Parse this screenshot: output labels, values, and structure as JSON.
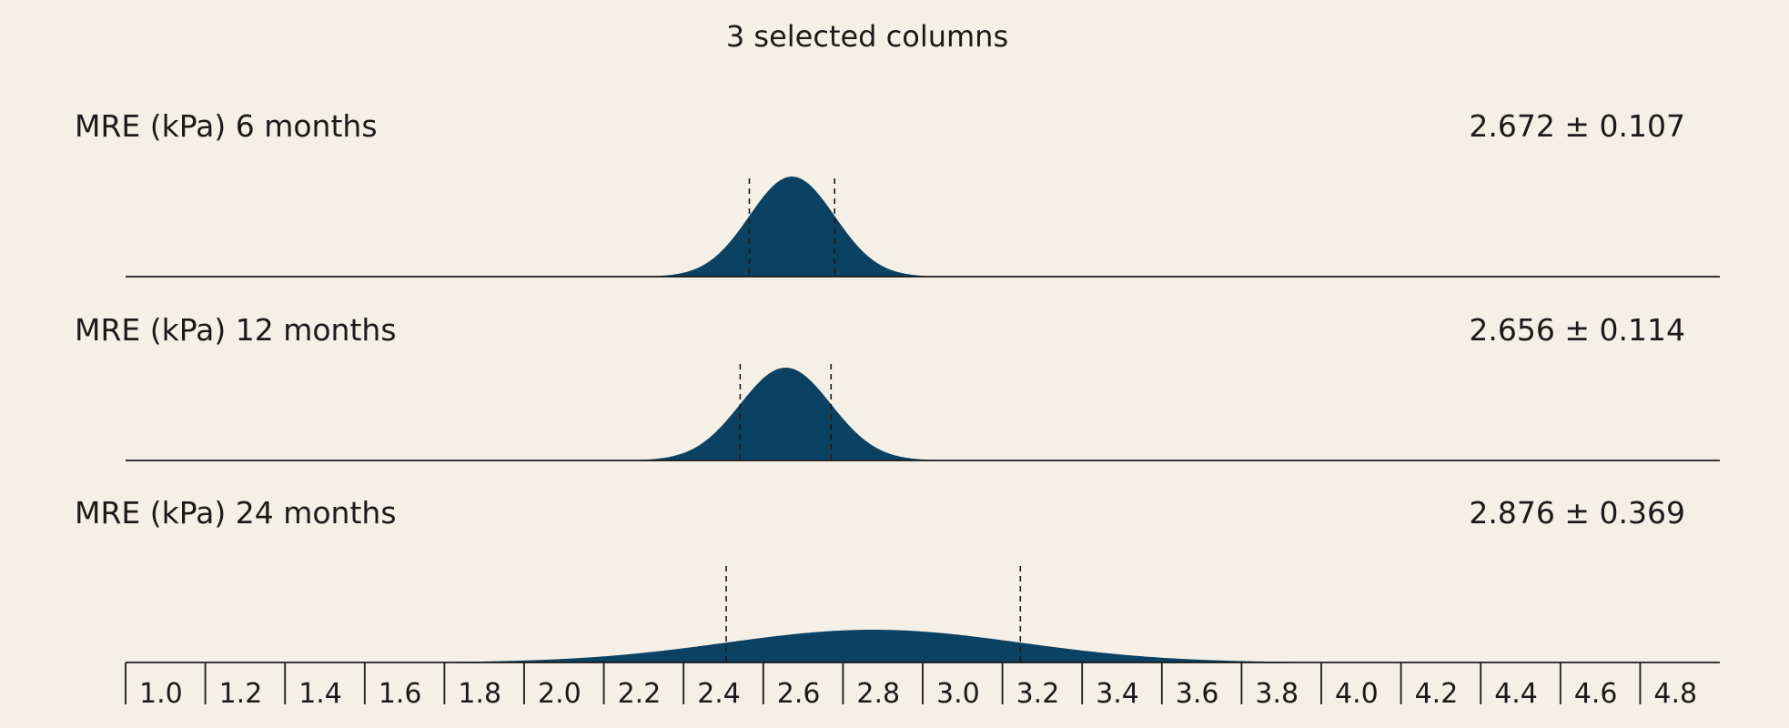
{
  "chart_data": {
    "type": "area",
    "title": "3 selected columns",
    "x_range": [
      1.0,
      5.0
    ],
    "tick_labels": [
      "1.0",
      "1.2",
      "1.4",
      "1.6",
      "1.8",
      "2.0",
      "2.2",
      "2.4",
      "2.6",
      "2.8",
      "3.0",
      "3.2",
      "3.4",
      "3.6",
      "3.8",
      "4.0",
      "4.2",
      "4.4",
      "4.6",
      "4.8"
    ],
    "tick_values": [
      1.0,
      1.2,
      1.4,
      1.6,
      1.8,
      2.0,
      2.2,
      2.4,
      2.6,
      2.8,
      3.0,
      3.2,
      3.4,
      3.6,
      3.8,
      4.0,
      4.2,
      4.4,
      4.6,
      4.8
    ],
    "series": [
      {
        "name": "MRE (kPa) 6 months",
        "mean": 2.672,
        "sd": 0.107,
        "stat_label": "2.672 ± 0.107"
      },
      {
        "name": "MRE (kPa) 12 months",
        "mean": 2.656,
        "sd": 0.114,
        "stat_label": "2.656 ± 0.114"
      },
      {
        "name": "MRE (kPa) 24 months",
        "mean": 2.876,
        "sd": 0.369,
        "stat_label": "2.876 ± 0.369"
      }
    ],
    "colors": {
      "fill": "#0b4163",
      "axis": "#1a1a1a",
      "background": "#f5f0e6"
    }
  }
}
